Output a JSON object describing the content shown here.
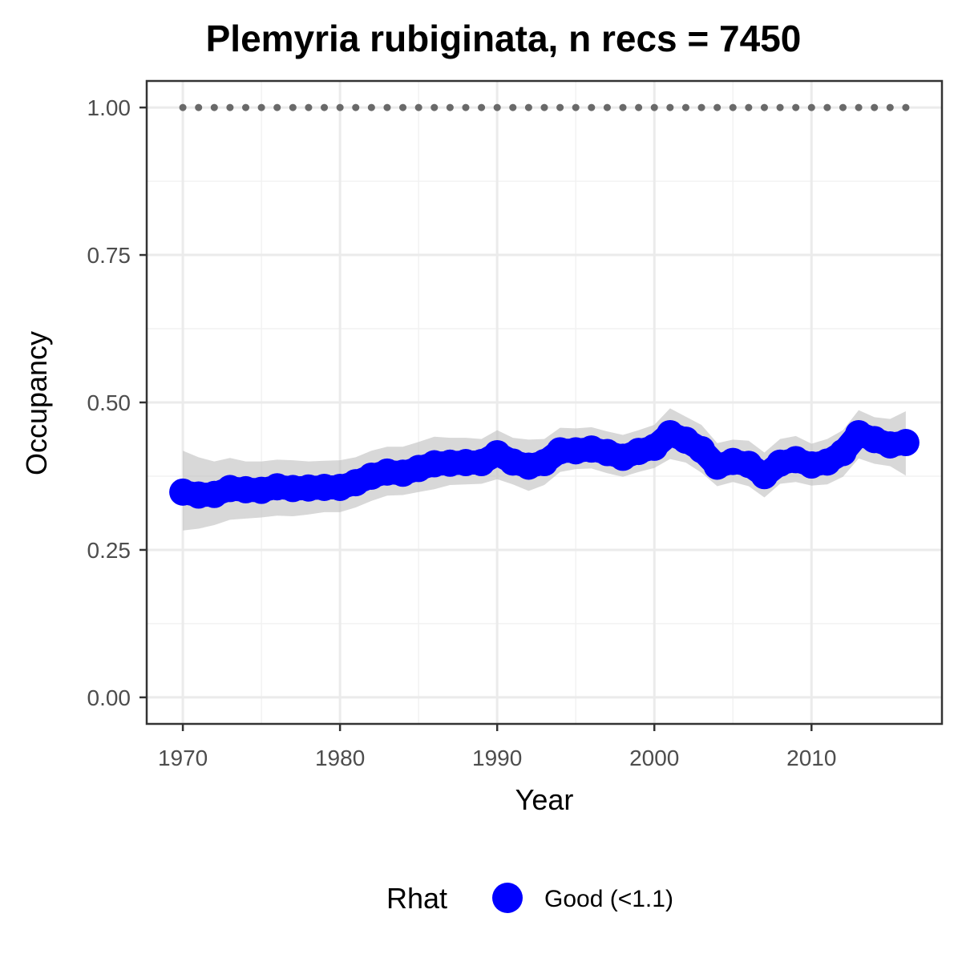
{
  "chart_data": {
    "type": "line",
    "title": "Plemyria rubiginata, n recs = 7450",
    "xlabel": "Year",
    "ylabel": "Occupancy",
    "xlim": [
      1967.7,
      2018.3
    ],
    "ylim": [
      -0.045,
      1.045
    ],
    "x_ticks": [
      1970,
      1980,
      1990,
      2000,
      2010
    ],
    "x_tick_labels": [
      "1970",
      "1980",
      "1990",
      "2000",
      "2010"
    ],
    "y_ticks": [
      0,
      0.25,
      0.5,
      0.75,
      1
    ],
    "y_tick_labels": [
      "0.00",
      "0.25",
      "0.50",
      "0.75",
      "1.00"
    ],
    "grid": true,
    "x": [
      1970,
      1971,
      1972,
      1973,
      1974,
      1975,
      1976,
      1977,
      1978,
      1979,
      1980,
      1981,
      1982,
      1983,
      1984,
      1985,
      1986,
      1987,
      1988,
      1989,
      1990,
      1991,
      1992,
      1993,
      1994,
      1995,
      1996,
      1997,
      1998,
      1999,
      2000,
      2001,
      2002,
      2003,
      2004,
      2005,
      2006,
      2007,
      2008,
      2009,
      2010,
      2011,
      2012,
      2013,
      2014,
      2015,
      2016
    ],
    "series": [
      {
        "name": "Good (<1.1)",
        "color": "#0000ff",
        "values": [
          0.348,
          0.343,
          0.344,
          0.354,
          0.352,
          0.351,
          0.357,
          0.354,
          0.355,
          0.356,
          0.356,
          0.364,
          0.375,
          0.382,
          0.38,
          0.388,
          0.396,
          0.397,
          0.398,
          0.398,
          0.413,
          0.399,
          0.392,
          0.398,
          0.418,
          0.418,
          0.421,
          0.415,
          0.407,
          0.417,
          0.424,
          0.447,
          0.436,
          0.42,
          0.392,
          0.4,
          0.395,
          0.376,
          0.397,
          0.403,
          0.394,
          0.399,
          0.415,
          0.447,
          0.437,
          0.428,
          0.432
        ],
        "lower": [
          0.283,
          0.286,
          0.292,
          0.301,
          0.303,
          0.305,
          0.308,
          0.307,
          0.31,
          0.314,
          0.314,
          0.322,
          0.333,
          0.342,
          0.343,
          0.348,
          0.353,
          0.36,
          0.361,
          0.362,
          0.37,
          0.361,
          0.35,
          0.36,
          0.382,
          0.387,
          0.388,
          0.38,
          0.374,
          0.382,
          0.389,
          0.404,
          0.398,
          0.381,
          0.358,
          0.365,
          0.358,
          0.339,
          0.362,
          0.365,
          0.359,
          0.361,
          0.374,
          0.405,
          0.396,
          0.392,
          0.376
        ],
        "upper": [
          0.418,
          0.407,
          0.4,
          0.406,
          0.4,
          0.4,
          0.403,
          0.402,
          0.4,
          0.401,
          0.402,
          0.407,
          0.418,
          0.425,
          0.425,
          0.433,
          0.442,
          0.44,
          0.44,
          0.438,
          0.453,
          0.44,
          0.437,
          0.438,
          0.457,
          0.456,
          0.458,
          0.451,
          0.445,
          0.453,
          0.462,
          0.49,
          0.476,
          0.462,
          0.431,
          0.437,
          0.435,
          0.415,
          0.438,
          0.443,
          0.43,
          0.438,
          0.453,
          0.487,
          0.475,
          0.472,
          0.485
        ]
      }
    ],
    "reference": {
      "x": [
        1970,
        1971,
        1972,
        1973,
        1974,
        1975,
        1976,
        1977,
        1978,
        1979,
        1980,
        1981,
        1982,
        1983,
        1984,
        1985,
        1986,
        1987,
        1988,
        1989,
        1990,
        1991,
        1992,
        1993,
        1994,
        1995,
        1996,
        1997,
        1998,
        1999,
        2000,
        2001,
        2002,
        2003,
        2004,
        2005,
        2006,
        2007,
        2008,
        2009,
        2010,
        2011,
        2012,
        2013,
        2014,
        2015,
        2016
      ],
      "y": 1.0,
      "color": "#696969"
    },
    "legend": {
      "title": "Rhat",
      "position": "bottom",
      "items": [
        {
          "label": "Good (<1.1)",
          "color": "#0000ff"
        }
      ]
    },
    "ribbon_color": "#bebebe"
  }
}
